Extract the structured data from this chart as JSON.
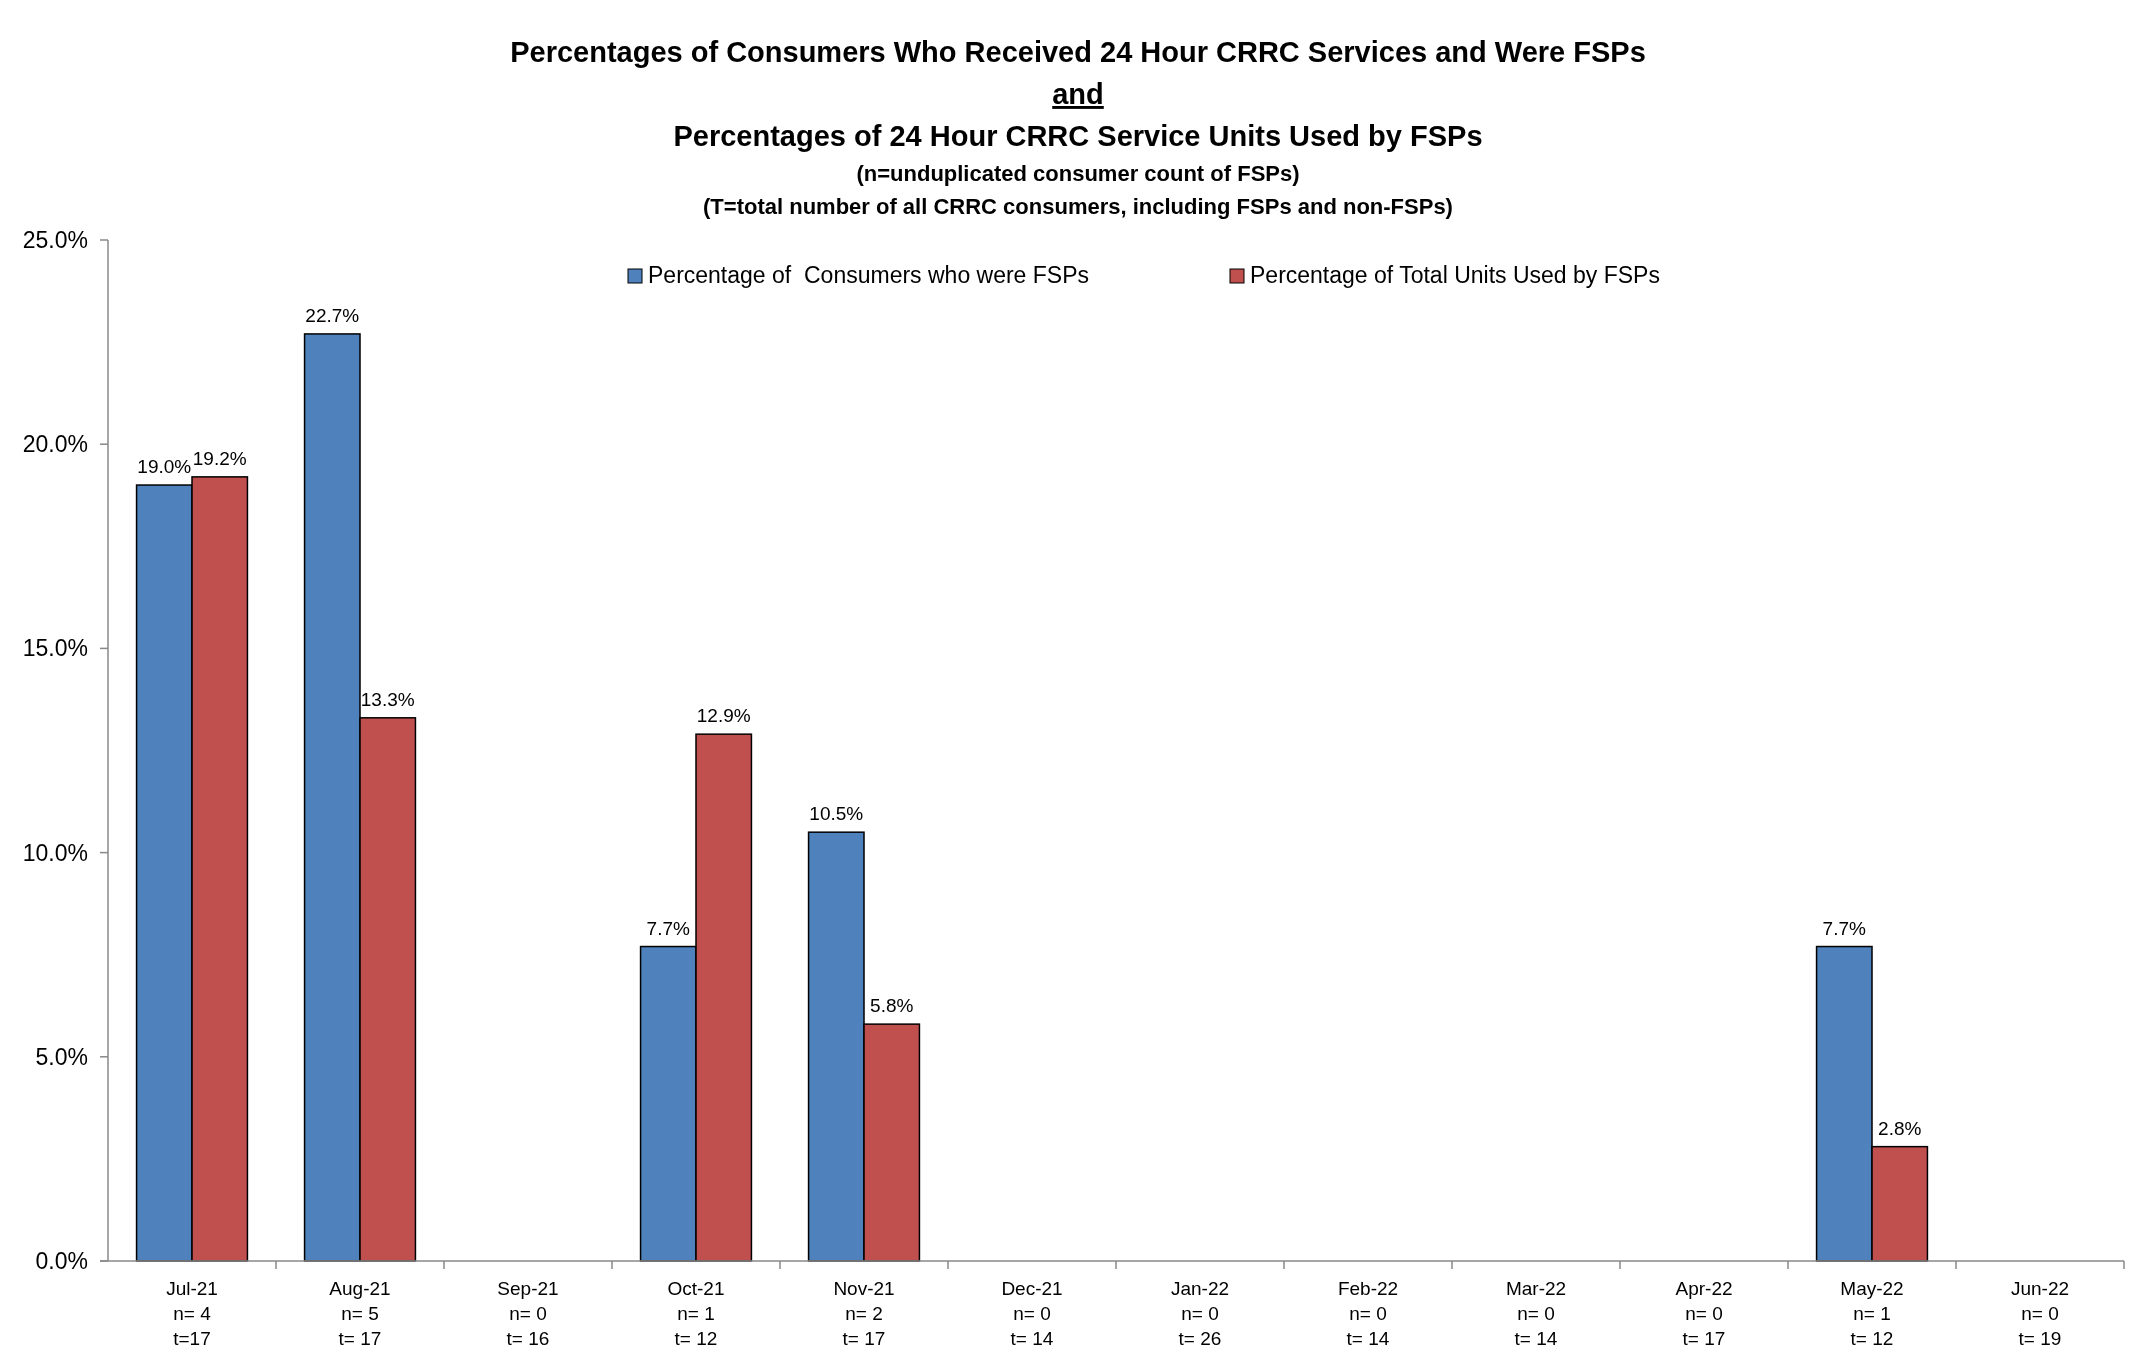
{
  "chart_data": {
    "type": "bar",
    "title": "Percentages of Consumers Who Received 24 Hour CRRC Services and Were FSPs\nand\nPercentages of 24 Hour CRRC Service Units Used by FSPs",
    "subtitle": "(n=unduplicated consumer count of FSPs)\n(T=total number of all CRRC consumers, including FSPs and non-FSPs)",
    "categories": [
      "Jul-21\nn= 4\nt=17",
      "Aug-21\nn= 5\nt= 17",
      "Sep-21\nn= 0\nt= 16",
      "Oct-21\nn= 1\nt= 12",
      "Nov-21\nn= 2\nt= 17",
      "Dec-21\nn= 0\nt= 14",
      "Jan-22\nn= 0\nt= 26",
      "Feb-22\nn= 0\nt= 14",
      "Mar-22\nn= 0\nt= 14",
      "Apr-22\nn= 0\nt= 17",
      "May-22\nn= 1\nt= 12",
      "Jun-22\nn= 0\nt= 19"
    ],
    "series": [
      {
        "name": "Percentage of  Consumers who were FSPs",
        "color": "#4f81bd",
        "values": [
          19.0,
          22.7,
          0,
          7.7,
          10.5,
          0,
          0,
          0,
          0,
          0,
          7.7,
          0
        ],
        "value_labels": [
          "19.0%",
          "22.7%",
          null,
          "7.7%",
          "10.5%",
          null,
          null,
          null,
          null,
          null,
          "7.7%",
          null
        ]
      },
      {
        "name": "Percentage of Total Units Used by FSPs",
        "color": "#c0504d",
        "values": [
          19.2,
          13.3,
          0,
          12.9,
          5.8,
          0,
          0,
          0,
          0,
          0,
          2.8,
          0
        ],
        "value_labels": [
          "19.2%",
          "13.3%",
          null,
          "12.9%",
          "5.8%",
          null,
          null,
          null,
          null,
          null,
          "2.8%",
          null
        ]
      }
    ],
    "ylim": [
      0,
      25
    ],
    "yticks": [
      {
        "value": 0,
        "label": "0.0%"
      },
      {
        "value": 5,
        "label": "5.0%"
      },
      {
        "value": 10,
        "label": "10.0%"
      },
      {
        "value": 15,
        "label": "15.0%"
      },
      {
        "value": 20,
        "label": "20.0%"
      },
      {
        "value": 25,
        "label": "25.0%"
      }
    ],
    "legend": "top",
    "grid": false
  }
}
